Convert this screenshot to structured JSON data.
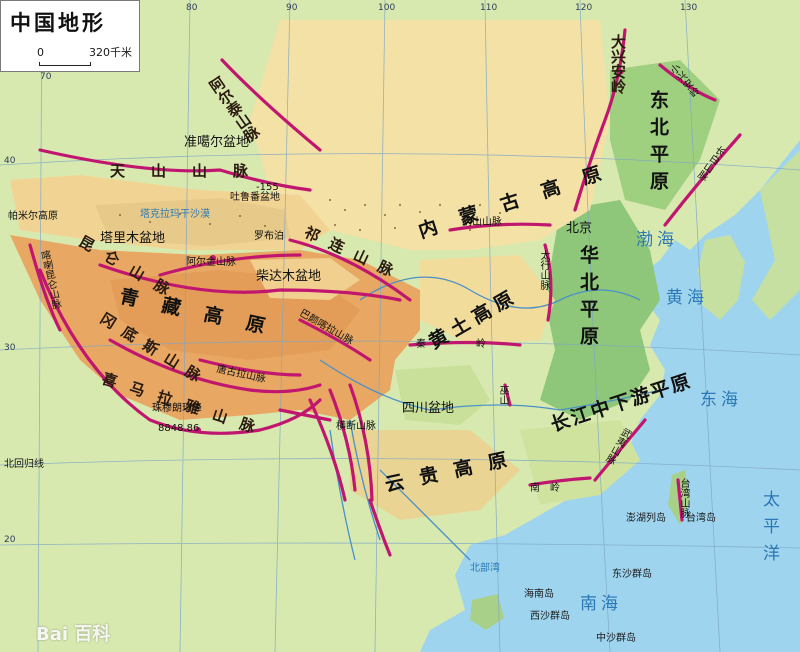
{
  "title": "中国地形",
  "scale": {
    "zero": "0",
    "distance": "320千米"
  },
  "graticule": {
    "longitudes": [
      "70",
      "80",
      "90",
      "100",
      "110",
      "120",
      "130"
    ],
    "latitudes": [
      "40",
      "30",
      "20"
    ],
    "tropic": "北回归线"
  },
  "mountains": {
    "altai": "阿尔泰山脉",
    "tianshan": "天山山脉",
    "daxinganling": "大兴安岭",
    "xiaoxinganling": "小兴安岭",
    "changbai": "长白山脉",
    "yinshan": "阴山山脉",
    "kunlun": "昆仑山脉",
    "altun": "阿尔金山脉",
    "qilian": "祁连山脉",
    "karakoram": "喀喇昆仑山脉",
    "gangdise": "冈底斯山脉",
    "tanggula": "唐古拉山脉",
    "bayankala": "巴颜喀拉山脉",
    "himalaya": "喜马拉雅山脉",
    "hengduan": "横断山脉",
    "taihang": "太行山脉",
    "qinling": "秦岭",
    "wushan": "巫山",
    "wuyi": "武夷山脉",
    "nanling": "南岭",
    "taiwan": "台湾山脉",
    "pamir": "帕米尔高原"
  },
  "regions": {
    "neimenggu": "内蒙古高原",
    "qingzang": "青藏高原",
    "huangtu": "黄土高原",
    "yungui": "云贵高原",
    "dongbei": "东北平原",
    "huabei": "华北平原",
    "changjiang": "长江中下游平原"
  },
  "basins": {
    "junggar": "准噶尔盆地",
    "tarim": "塔里木盆地",
    "qaidam": "柴达木盆地",
    "sichuan": "四川盆地",
    "turpan": "吐鲁番盆地",
    "taklamakan": "塔克拉玛干沙漠"
  },
  "places": {
    "beijing": "北京",
    "luobupo": "罗布泊",
    "turpan_depth": "-155",
    "everest": "珠穆朗玛峰",
    "everest_height": "8848.86"
  },
  "seas": {
    "bohai": "渤海",
    "huanghai": "黄海",
    "donghai": "东海",
    "taipingyang": "太平洋",
    "nanhai": "南海",
    "beibuwan": "北部湾"
  },
  "islands": {
    "penghu": "澎湖列岛",
    "taiwan": "台湾岛",
    "dongsha": "东沙群岛",
    "xisha": "西沙群岛",
    "zhongsha": "中沙群岛",
    "hainan": "海南岛"
  },
  "watermark": "Bai 百科"
}
